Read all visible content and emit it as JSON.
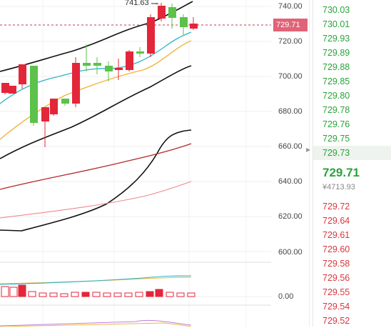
{
  "price_axis": {
    "ticks": [
      "740.00",
      "720.00",
      "700.00",
      "680.00",
      "660.00",
      "640.00",
      "620.00",
      "600.00"
    ],
    "volume_zero": "0.00"
  },
  "current_price_tag": "729.71",
  "peak_annotation": "741.63 →",
  "orderbook": {
    "asks": [
      "730.03",
      "730.01",
      "729.93",
      "729.89",
      "729.88",
      "729.85",
      "729.80",
      "729.78",
      "729.76",
      "729.75",
      "729.73"
    ],
    "mid_price": "729.71",
    "mid_cny": "¥4713.93",
    "bids": [
      "729.72",
      "729.64",
      "729.61",
      "729.60",
      "729.58",
      "729.56",
      "729.55",
      "729.54",
      "729.52"
    ]
  },
  "colors": {
    "up": "#2aa33a",
    "down": "#d9363e",
    "bull_candle": "#5cc24a",
    "bear_candle": "#e3263a",
    "ma_fast": "#2fb5c8",
    "ma_mid": "#f0b43c",
    "band": "#111111",
    "ma_long_dark": "#b52a2a",
    "ma_long_light": "#f08a8a"
  },
  "icons": {
    "orderbook_marker": "caret-right-icon"
  }
}
